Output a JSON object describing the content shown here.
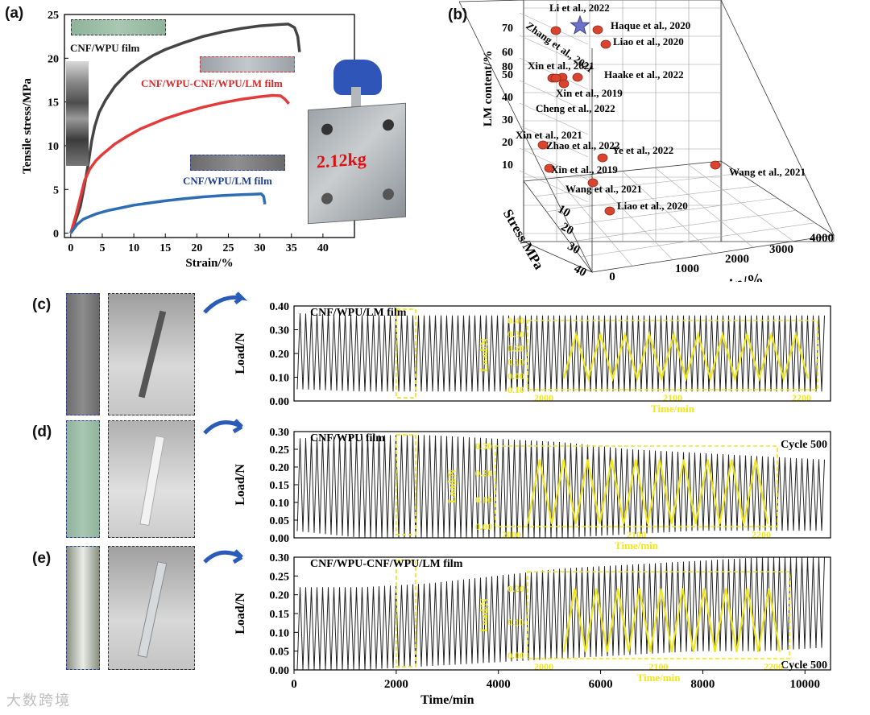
{
  "labels": {
    "a": "(a)",
    "b": "(b)",
    "c": "(c)",
    "d": "(d)",
    "e": "(e)"
  },
  "colors": {
    "cnf_wpu": "#444444",
    "cnf_wpu_cnf_wpu_lm": "#e23b3b",
    "cnf_wpu_lm": "#2e6db4",
    "yellow": "#f0e61a",
    "weight_text": "#e01010"
  },
  "weight_label": "2.12kg",
  "watermark": "大数跨境",
  "chart_data": [
    {
      "id": "a",
      "type": "line",
      "xlabel": "Strain/%",
      "ylabel": "Tensile stress/MPa",
      "xlim": [
        -1,
        45
      ],
      "ylim": [
        -0.5,
        25
      ],
      "xticks": [
        0,
        5,
        10,
        15,
        20,
        25,
        30,
        35,
        40
      ],
      "yticks": [
        0,
        5,
        10,
        15,
        20,
        25
      ],
      "series": [
        {
          "name": "CNF/WPU film",
          "color": "#444444",
          "x": [
            0,
            0.8,
            1.5,
            2.2,
            2.8,
            3.3,
            3.8,
            4.5,
            5.5,
            7,
            9,
            11,
            13,
            15,
            18,
            21,
            24,
            27,
            30,
            33,
            34.5,
            35.5,
            36,
            36.3
          ],
          "y": [
            0,
            1.5,
            3,
            5.5,
            8,
            10.5,
            12.2,
            13.8,
            15.2,
            16.8,
            18.3,
            19.4,
            20.3,
            21.0,
            21.8,
            22.5,
            23.0,
            23.4,
            23.7,
            23.85,
            23.9,
            23.5,
            22.5,
            20.7
          ]
        },
        {
          "name": "CNF/WPU-CNF/WPU/LM film",
          "color": "#e23b3b",
          "x": [
            0,
            0.8,
            1.5,
            2.2,
            3,
            4,
            5,
            7,
            9,
            11,
            13,
            15,
            18,
            21,
            24,
            27,
            30,
            32,
            33.3,
            34,
            34.6
          ],
          "y": [
            0,
            2,
            4,
            6,
            7.3,
            8.3,
            9,
            10.2,
            11.1,
            11.9,
            12.5,
            13.1,
            13.8,
            14.4,
            14.9,
            15.3,
            15.6,
            15.75,
            15.7,
            15.3,
            14.8
          ]
        },
        {
          "name": "CNF/WPU/LM film",
          "color": "#2e6db4",
          "x": [
            0,
            0.5,
            1,
            1.5,
            2,
            3,
            4,
            6,
            8,
            10,
            12,
            15,
            18,
            21,
            24,
            27,
            29,
            30.2,
            30.6,
            30.8
          ],
          "y": [
            0,
            0.5,
            1.0,
            1.3,
            1.6,
            1.9,
            2.2,
            2.6,
            2.9,
            3.2,
            3.4,
            3.7,
            3.95,
            4.15,
            4.3,
            4.4,
            4.45,
            4.5,
            4.2,
            3.3
          ]
        }
      ],
      "annotations": [
        "CNF/WPU film",
        "CNF/WPU-CNF/WPU/LM film",
        "CNF/WPU/LM film"
      ]
    },
    {
      "id": "b",
      "type": "scatter",
      "xlabel": "Strain/%",
      "ylabel": "LM content/%",
      "zlabel": "Stress/MPa",
      "xticks": [
        0,
        1000,
        2000,
        3000,
        4000
      ],
      "yticks": [
        10,
        20,
        30,
        40,
        50,
        60,
        70,
        80
      ],
      "zticks": [
        10,
        20,
        30,
        40
      ],
      "points": [
        {
          "label": "Li et al., 2022",
          "marker": "star"
        },
        {
          "label": "Zhang et al., 2021",
          "marker": "sphere"
        },
        {
          "label": "Haque et al., 2020",
          "marker": "sphere"
        },
        {
          "label": "Liao et al., 2020",
          "marker": "sphere"
        },
        {
          "label": "Xin et al., 2021",
          "marker": "sphere"
        },
        {
          "label": "Haake et al., 2022",
          "marker": "sphere"
        },
        {
          "label": "Xin et al., 2019",
          "marker": "sphere"
        },
        {
          "label": "Cheng et al., 2022",
          "marker": "sphere"
        },
        {
          "label": "Xin et al., 2021",
          "marker": "sphere"
        },
        {
          "label": "Zhao et al., 2022",
          "marker": "sphere"
        },
        {
          "label": "Ye et al., 2022",
          "marker": "sphere"
        },
        {
          "label": "Xin et al., 2019",
          "marker": "sphere"
        },
        {
          "label": "Wang et al., 2021",
          "marker": "sphere"
        },
        {
          "label": "Wang et al., 2021",
          "marker": "sphere"
        },
        {
          "label": "Liao et al., 2020",
          "marker": "sphere"
        }
      ]
    },
    {
      "id": "cde",
      "type": "line",
      "xlabel": "Time/min",
      "ylabel": "Load/N",
      "xlim": [
        0,
        10500
      ],
      "xticks": [
        0,
        2000,
        4000,
        6000,
        8000,
        10000
      ],
      "panels": [
        {
          "id": "c",
          "title": "CNF/WPU/LM film",
          "cycle_label": "",
          "ylim": [
            0,
            0.4
          ],
          "yticks": [
            0.0,
            0.1,
            0.2,
            0.3,
            0.4
          ],
          "band_low": [
            0.05,
            0.04,
            0.04,
            0.04,
            0.04,
            0.04,
            0.04,
            0.04,
            0.04
          ],
          "band_high": [
            0.37,
            0.36,
            0.36,
            0.36,
            0.36,
            0.36,
            0.36,
            0.36,
            0.36
          ],
          "inset": {
            "xlabel": "Time/min",
            "ylabel": "Load/N",
            "xticks": [
              2000,
              2100,
              2200
            ],
            "yticks": [
              -0.1,
              0.0,
              0.1,
              0.2,
              0.3,
              0.4
            ],
            "ylim": [
              -0.1,
              0.4
            ],
            "peak": 0.3,
            "trough": -0.02,
            "cycles": 10
          }
        },
        {
          "id": "d",
          "title": "CNF/WPU film",
          "cycle_label": "Cycle 500",
          "ylim": [
            0,
            0.3
          ],
          "yticks": [
            0.0,
            0.05,
            0.1,
            0.15,
            0.2,
            0.25,
            0.3
          ],
          "band_low": [
            0.02,
            0.0,
            0.0,
            0.0,
            0.0,
            0.01,
            0.02,
            0.02,
            0.02
          ],
          "band_high": [
            0.28,
            0.29,
            0.29,
            0.28,
            0.27,
            0.25,
            0.24,
            0.23,
            0.22
          ],
          "inset": {
            "xlabel": "Time/min",
            "ylabel": "Load/N",
            "xticks": [
              2000,
              2100,
              2200
            ],
            "yticks": [
              0.0,
              0.1,
              0.2,
              0.3
            ],
            "ylim": [
              0.0,
              0.3
            ],
            "peak": 0.25,
            "trough": 0.01,
            "cycles": 10
          }
        },
        {
          "id": "e",
          "title": "CNF/WPU-CNF/WPU/LM film",
          "cycle_label": "Cycle 500",
          "ylim": [
            0,
            0.3
          ],
          "yticks": [
            0.0,
            0.05,
            0.1,
            0.15,
            0.2,
            0.25,
            0.3
          ],
          "band_low": [
            0.0,
            0.0,
            0.01,
            0.02,
            0.03,
            0.04,
            0.05,
            0.05,
            0.06
          ],
          "band_high": [
            0.22,
            0.22,
            0.23,
            0.25,
            0.27,
            0.28,
            0.29,
            0.3,
            0.3
          ],
          "inset": {
            "xlabel": "Time/min",
            "ylabel": "Load/N",
            "xticks": [
              2000,
              2100,
              2200
            ],
            "yticks": [
              0.0,
              0.1,
              0.2
            ],
            "ylim": [
              -0.01,
              0.25
            ],
            "peak": 0.2,
            "trough": 0.01,
            "cycles": 10
          }
        }
      ]
    }
  ]
}
